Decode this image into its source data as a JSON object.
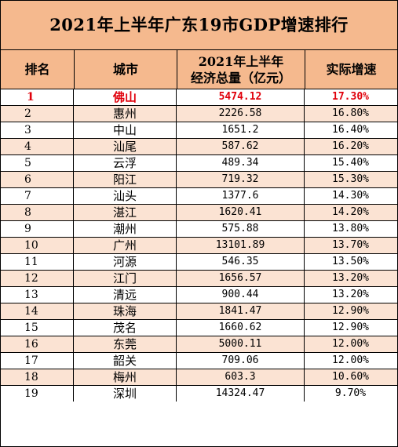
{
  "title": "2021年上半年广东19市GDP增速排行",
  "headers": {
    "rank": "排名",
    "city": "城市",
    "gdp_line1": "2021年上半年",
    "gdp_line2": "经济总量（亿元）",
    "rate": "实际增速"
  },
  "colors": {
    "header_bg": "#f5b98e",
    "alt_row_bg": "#fbe3d3",
    "highlight_text": "#e0000b"
  },
  "rows": [
    {
      "rank": "1",
      "city": "佛山",
      "gdp": "5474.12",
      "rate": "17.30%"
    },
    {
      "rank": "2",
      "city": "惠州",
      "gdp": "2226.58",
      "rate": "16.80%"
    },
    {
      "rank": "3",
      "city": "中山",
      "gdp": "1651.2",
      "rate": "16.40%"
    },
    {
      "rank": "4",
      "city": "汕尾",
      "gdp": "587.62",
      "rate": "16.20%"
    },
    {
      "rank": "5",
      "city": "云浮",
      "gdp": "489.34",
      "rate": "15.40%"
    },
    {
      "rank": "6",
      "city": "阳江",
      "gdp": "719.32",
      "rate": "15.30%"
    },
    {
      "rank": "7",
      "city": "汕头",
      "gdp": "1377.6",
      "rate": "14.30%"
    },
    {
      "rank": "8",
      "city": "湛江",
      "gdp": "1620.41",
      "rate": "14.20%"
    },
    {
      "rank": "9",
      "city": "潮州",
      "gdp": "575.88",
      "rate": "13.80%"
    },
    {
      "rank": "10",
      "city": "广州",
      "gdp": "13101.89",
      "rate": "13.70%"
    },
    {
      "rank": "11",
      "city": "河源",
      "gdp": "546.35",
      "rate": "13.50%"
    },
    {
      "rank": "12",
      "city": "江门",
      "gdp": "1656.57",
      "rate": "13.20%"
    },
    {
      "rank": "13",
      "city": "清远",
      "gdp": "900.44",
      "rate": "13.20%"
    },
    {
      "rank": "14",
      "city": "珠海",
      "gdp": "1841.47",
      "rate": "12.90%"
    },
    {
      "rank": "15",
      "city": "茂名",
      "gdp": "1660.62",
      "rate": "12.90%"
    },
    {
      "rank": "16",
      "city": "东莞",
      "gdp": "5000.11",
      "rate": "12.00%"
    },
    {
      "rank": "17",
      "city": "韶关",
      "gdp": "709.06",
      "rate": "12.00%"
    },
    {
      "rank": "18",
      "city": "梅州",
      "gdp": "603.3",
      "rate": "10.60%"
    },
    {
      "rank": "19",
      "city": "深圳",
      "gdp": "14324.47",
      "rate": "9.70%"
    }
  ]
}
